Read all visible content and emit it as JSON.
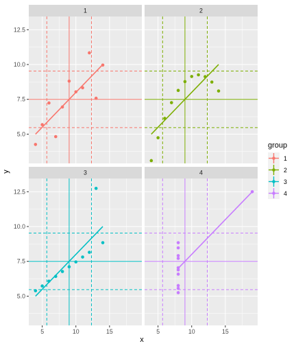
{
  "chart_data": {
    "type": "scatter",
    "layout": "facet_wrap 2x2",
    "xlabel": "x",
    "ylabel": "y",
    "xlim": [
      3,
      19.8
    ],
    "ylim": [
      2.9,
      13.45
    ],
    "x_ticks": [
      5,
      10,
      15
    ],
    "y_ticks": [
      5.0,
      7.5,
      10.0,
      12.5
    ],
    "y_tick_labels": [
      "5.0",
      "7.5",
      "10.0",
      "12.5"
    ],
    "background": "#ebebeb",
    "grid": true,
    "legend": {
      "title": "group",
      "position": "right",
      "entries": [
        "1",
        "2",
        "3",
        "4"
      ]
    },
    "panels": [
      {
        "strip": "1",
        "color": "#F8766D",
        "points": [
          [
            10,
            8.04
          ],
          [
            8,
            6.95
          ],
          [
            13,
            7.58
          ],
          [
            9,
            8.81
          ],
          [
            11,
            8.33
          ],
          [
            14,
            9.96
          ],
          [
            6,
            7.24
          ],
          [
            4,
            4.26
          ],
          [
            12,
            10.84
          ],
          [
            7,
            4.82
          ],
          [
            5,
            5.68
          ]
        ],
        "mean_x": 9,
        "mean_y": 7.5,
        "x_sd_bounds": [
          5.68,
          12.32
        ],
        "y_sd_bounds": [
          5.47,
          9.53
        ],
        "fit": {
          "intercept": 3.0,
          "slope": 0.5,
          "x_range": [
            4,
            14
          ]
        }
      },
      {
        "strip": "2",
        "color": "#7CAE00",
        "points": [
          [
            10,
            9.14
          ],
          [
            8,
            8.14
          ],
          [
            13,
            8.74
          ],
          [
            9,
            8.77
          ],
          [
            11,
            9.26
          ],
          [
            14,
            8.1
          ],
          [
            6,
            6.13
          ],
          [
            4,
            3.1
          ],
          [
            12,
            9.13
          ],
          [
            7,
            7.26
          ],
          [
            5,
            4.74
          ]
        ],
        "mean_x": 9,
        "mean_y": 7.5,
        "x_sd_bounds": [
          5.68,
          12.32
        ],
        "y_sd_bounds": [
          5.47,
          9.53
        ],
        "fit": {
          "intercept": 3.0,
          "slope": 0.5,
          "x_range": [
            4,
            14
          ]
        }
      },
      {
        "strip": "3",
        "color": "#00BFC4",
        "points": [
          [
            10,
            7.46
          ],
          [
            8,
            6.77
          ],
          [
            13,
            12.74
          ],
          [
            9,
            7.11
          ],
          [
            11,
            7.81
          ],
          [
            14,
            8.84
          ],
          [
            6,
            6.08
          ],
          [
            4,
            5.39
          ],
          [
            12,
            8.15
          ],
          [
            7,
            6.42
          ],
          [
            5,
            5.73
          ]
        ],
        "mean_x": 9,
        "mean_y": 7.5,
        "x_sd_bounds": [
          5.68,
          12.32
        ],
        "y_sd_bounds": [
          5.47,
          9.53
        ],
        "fit": {
          "intercept": 3.0,
          "slope": 0.5,
          "x_range": [
            4,
            14
          ]
        }
      },
      {
        "strip": "4",
        "color": "#C77CFF",
        "points": [
          [
            8,
            6.58
          ],
          [
            8,
            5.76
          ],
          [
            8,
            7.71
          ],
          [
            8,
            8.84
          ],
          [
            8,
            8.47
          ],
          [
            8,
            7.04
          ],
          [
            8,
            5.25
          ],
          [
            19,
            12.5
          ],
          [
            8,
            5.56
          ],
          [
            8,
            7.91
          ],
          [
            8,
            6.89
          ]
        ],
        "mean_x": 9,
        "mean_y": 7.5,
        "x_sd_bounds": [
          5.68,
          12.32
        ],
        "y_sd_bounds": [
          5.47,
          9.53
        ],
        "fit": {
          "intercept": 3.0,
          "slope": 0.5,
          "x_range": [
            8,
            19
          ]
        }
      }
    ]
  }
}
